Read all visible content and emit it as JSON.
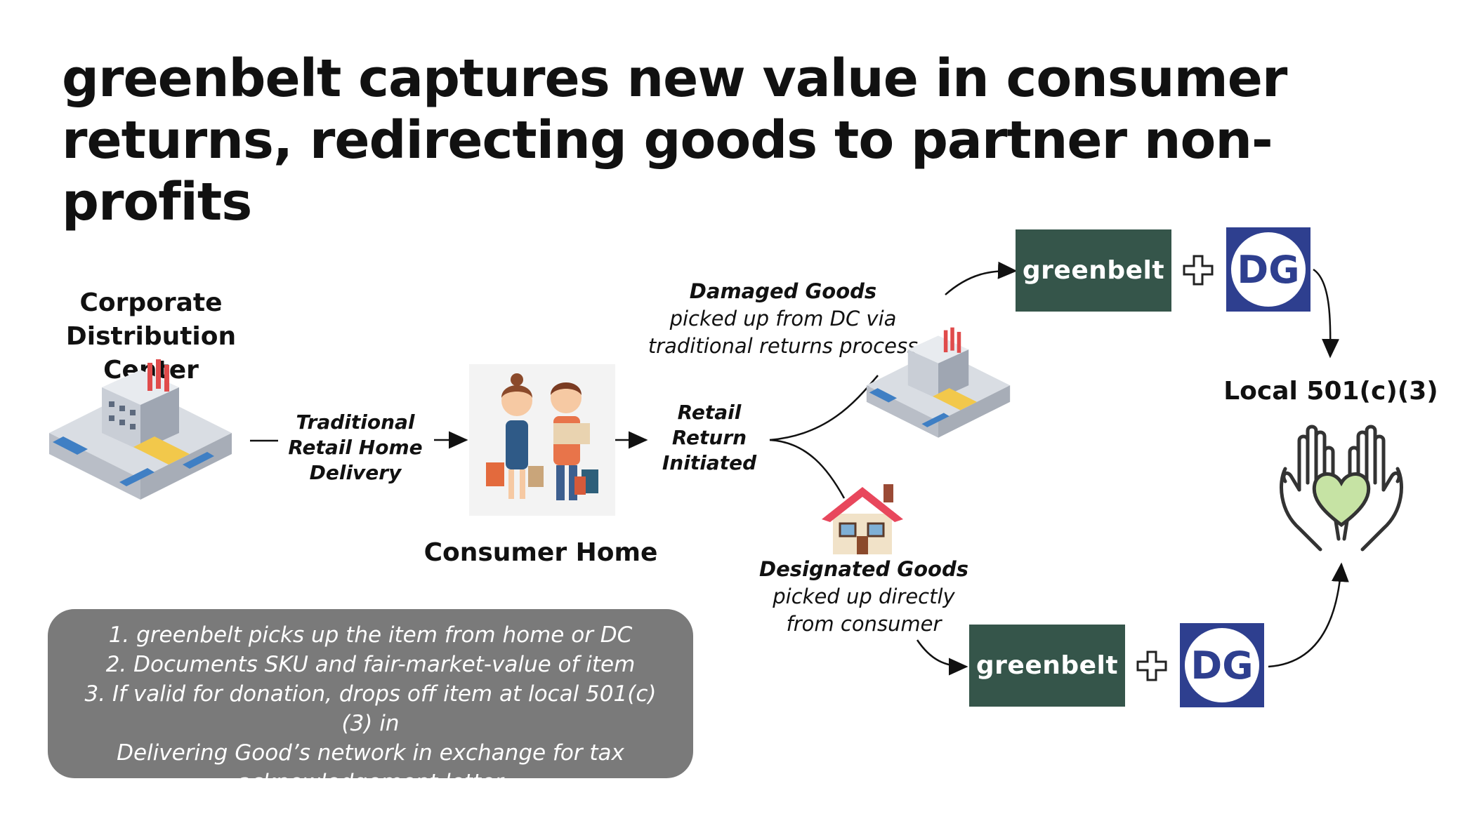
{
  "title_line1": "greenbelt captures new value in consumer",
  "title_line2": "returns, redirecting goods to partner non-profits",
  "nodes": {
    "dc_label_line1": "Corporate",
    "dc_label_line2": "Distribution Center",
    "consumer_home": "Consumer Home",
    "nonprofit": "Local 501(c)(3)"
  },
  "edges": {
    "delivery_line1": "Traditional",
    "delivery_line2": "Retail Home",
    "delivery_line3": "Delivery",
    "return_line1": "Retail",
    "return_line2": "Return",
    "return_line3": "Initiated",
    "damaged_title": "Damaged Goods",
    "damaged_line2": "picked up from DC via",
    "damaged_line3": "traditional returns process",
    "designated_title": "Designated Goods",
    "designated_line2": "picked up directly",
    "designated_line3": "from consumer"
  },
  "partners": {
    "greenbelt": "greenbelt",
    "dg_logo_text": "DG"
  },
  "steps": [
    "1.  greenbelt picks up the item from home or DC",
    "2.  Documents SKU and fair-market-value of item",
    "3.  If valid for donation, drops off item at local 501(c)(3) in",
    "Delivering Good’s network in exchange for tax",
    "acknowledgement letter"
  ],
  "colors": {
    "greenbelt_bg": "#35554a",
    "dg_blue": "#2e3f8f",
    "note_bg": "#7a7a7a",
    "heart_green": "#c6e3a4",
    "house_roof": "#e8475c"
  }
}
